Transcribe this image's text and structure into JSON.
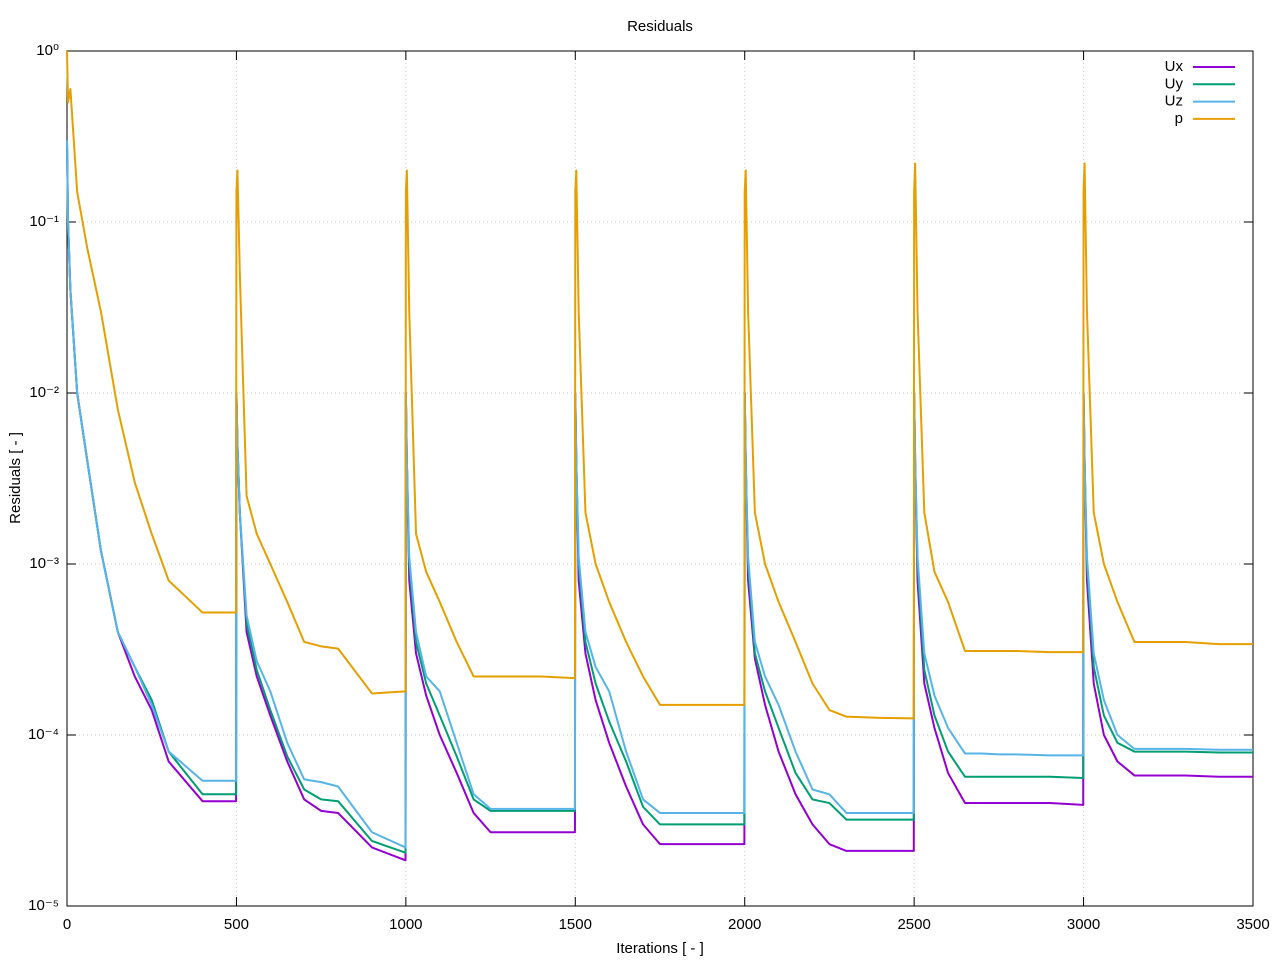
{
  "chart_data": {
    "type": "line",
    "title": "Residuals",
    "xlabel": "Iterations [ - ]",
    "ylabel": "Residuals [ - ]",
    "ylog": true,
    "grid": true,
    "legend": "upper right",
    "xlim": [
      0,
      3500
    ],
    "xticks": [
      0,
      500,
      1000,
      1500,
      2000,
      2500,
      3000,
      3500
    ],
    "ylim": [
      1e-05,
      1
    ],
    "yticks": [
      {
        "value": 1e-05,
        "label": "10⁻⁵"
      },
      {
        "value": 0.0001,
        "label": "10⁻⁴"
      },
      {
        "value": 0.001,
        "label": "10⁻³"
      },
      {
        "value": 0.01,
        "label": "10⁻²"
      },
      {
        "value": 0.1,
        "label": "10⁻¹"
      },
      {
        "value": 1,
        "label": "10⁰"
      }
    ],
    "x": [
      0,
      3,
      10,
      30,
      60,
      100,
      150,
      200,
      250,
      300,
      400,
      499,
      500,
      503,
      510,
      530,
      560,
      600,
      650,
      700,
      750,
      800,
      900,
      999,
      1000,
      1003,
      1010,
      1030,
      1060,
      1100,
      1150,
      1200,
      1250,
      1300,
      1400,
      1499,
      1500,
      1503,
      1510,
      1530,
      1560,
      1600,
      1650,
      1700,
      1750,
      1800,
      1900,
      1999,
      2000,
      2003,
      2010,
      2030,
      2060,
      2100,
      2150,
      2200,
      2250,
      2300,
      2400,
      2499,
      2500,
      2503,
      2510,
      2530,
      2560,
      2600,
      2650,
      2700,
      2750,
      2800,
      2900,
      2999,
      3000,
      3003,
      3010,
      3030,
      3060,
      3100,
      3150,
      3200,
      3250,
      3300,
      3400,
      3499,
      3500
    ],
    "series": [
      {
        "name": "Ux",
        "color": "#9400d3",
        "values": [
          0.3,
          0.1,
          0.04,
          0.01,
          0.004,
          0.0012,
          0.0004,
          0.00022,
          0.00014,
          7e-05,
          4.1e-05,
          4.1e-05,
          0.01,
          0.005,
          0.002,
          0.0004,
          0.00022,
          0.00013,
          7e-05,
          4.2e-05,
          3.6e-05,
          3.5e-05,
          2.2e-05,
          1.85e-05,
          0.01,
          0.004,
          0.0008,
          0.0003,
          0.00017,
          0.0001,
          6e-05,
          3.5e-05,
          2.7e-05,
          2.7e-05,
          2.7e-05,
          2.7e-05,
          0.01,
          0.004,
          0.0008,
          0.0003,
          0.00016,
          9e-05,
          5e-05,
          3e-05,
          2.3e-05,
          2.3e-05,
          2.3e-05,
          2.3e-05,
          0.01,
          0.004,
          0.0008,
          0.00028,
          0.00015,
          8e-05,
          4.5e-05,
          3e-05,
          2.3e-05,
          2.1e-05,
          2.1e-05,
          2.1e-05,
          0.01,
          0.004,
          0.0008,
          0.0002,
          0.00011,
          6e-05,
          4e-05,
          4e-05,
          4e-05,
          4e-05,
          4e-05,
          3.9e-05,
          0.01,
          0.004,
          0.0008,
          0.0002,
          0.0001,
          7e-05,
          5.8e-05,
          5.8e-05,
          5.8e-05,
          5.8e-05,
          5.7e-05,
          5.7e-05,
          5.7e-05
        ]
      },
      {
        "name": "Uy",
        "color": "#009e73",
        "values": [
          0.3,
          0.1,
          0.04,
          0.01,
          0.004,
          0.0012,
          0.0004,
          0.00025,
          0.00016,
          8e-05,
          4.5e-05,
          4.5e-05,
          0.01,
          0.005,
          0.002,
          0.00045,
          0.00024,
          0.00014,
          7.5e-05,
          4.8e-05,
          4.2e-05,
          4.1e-05,
          2.4e-05,
          2.05e-05,
          0.01,
          0.004,
          0.001,
          0.00035,
          0.0002,
          0.00013,
          7.5e-05,
          4.2e-05,
          3.6e-05,
          3.6e-05,
          3.6e-05,
          3.6e-05,
          0.01,
          0.004,
          0.001,
          0.00035,
          0.0002,
          0.00012,
          7e-05,
          3.8e-05,
          3e-05,
          3e-05,
          3e-05,
          3e-05,
          0.01,
          0.004,
          0.001,
          0.0003,
          0.00018,
          0.00011,
          6e-05,
          4.2e-05,
          4e-05,
          3.2e-05,
          3.2e-05,
          3.2e-05,
          0.01,
          0.004,
          0.001,
          0.00024,
          0.00013,
          8e-05,
          5.7e-05,
          5.7e-05,
          5.7e-05,
          5.7e-05,
          5.7e-05,
          5.6e-05,
          0.01,
          0.004,
          0.001,
          0.00025,
          0.00013,
          9e-05,
          8e-05,
          8e-05,
          8e-05,
          8e-05,
          7.9e-05,
          7.9e-05,
          7.9e-05
        ]
      },
      {
        "name": "Uz",
        "color": "#56b4e9",
        "values": [
          0.3,
          0.1,
          0.04,
          0.01,
          0.004,
          0.0012,
          0.0004,
          0.00025,
          0.00015,
          8e-05,
          5.4e-05,
          5.4e-05,
          0.01,
          0.005,
          0.002,
          0.0005,
          0.00027,
          0.00018,
          9e-05,
          5.5e-05,
          5.3e-05,
          5e-05,
          2.7e-05,
          2.2e-05,
          0.01,
          0.004,
          0.0011,
          0.0004,
          0.00022,
          0.00018,
          9e-05,
          4.5e-05,
          3.7e-05,
          3.7e-05,
          3.7e-05,
          3.7e-05,
          0.01,
          0.004,
          0.0011,
          0.0004,
          0.00025,
          0.00018,
          8e-05,
          4.2e-05,
          3.5e-05,
          3.5e-05,
          3.5e-05,
          3.5e-05,
          0.01,
          0.004,
          0.0011,
          0.00035,
          0.00022,
          0.00015,
          8e-05,
          4.8e-05,
          4.5e-05,
          3.5e-05,
          3.5e-05,
          3.5e-05,
          0.01,
          0.004,
          0.0011,
          0.0003,
          0.00017,
          0.00011,
          7.8e-05,
          7.8e-05,
          7.7e-05,
          7.7e-05,
          7.6e-05,
          7.6e-05,
          0.01,
          0.004,
          0.0011,
          0.0003,
          0.00016,
          0.0001,
          8.3e-05,
          8.3e-05,
          8.3e-05,
          8.3e-05,
          8.2e-05,
          8.2e-05,
          8.2e-05
        ]
      },
      {
        "name": "p",
        "color": "#e69f00",
        "values": [
          1,
          0.5,
          0.6,
          0.15,
          0.07,
          0.03,
          0.008,
          0.003,
          0.0015,
          0.0008,
          0.00052,
          0.00052,
          0.15,
          0.2,
          0.05,
          0.0025,
          0.0015,
          0.001,
          0.0006,
          0.00035,
          0.00033,
          0.00032,
          0.000175,
          0.00018,
          0.15,
          0.2,
          0.03,
          0.0015,
          0.0009,
          0.0006,
          0.00035,
          0.00022,
          0.00022,
          0.00022,
          0.00022,
          0.000215,
          0.15,
          0.2,
          0.03,
          0.002,
          0.001,
          0.0006,
          0.00035,
          0.00022,
          0.00015,
          0.00015,
          0.00015,
          0.00015,
          0.15,
          0.2,
          0.03,
          0.002,
          0.001,
          0.0006,
          0.00035,
          0.0002,
          0.00014,
          0.000128,
          0.000126,
          0.000125,
          0.15,
          0.22,
          0.03,
          0.002,
          0.0009,
          0.0006,
          0.00031,
          0.00031,
          0.00031,
          0.00031,
          0.000305,
          0.000305,
          0.15,
          0.22,
          0.03,
          0.002,
          0.001,
          0.0006,
          0.00035,
          0.00035,
          0.00035,
          0.00035,
          0.00034,
          0.00034,
          0.00034
        ]
      }
    ]
  }
}
